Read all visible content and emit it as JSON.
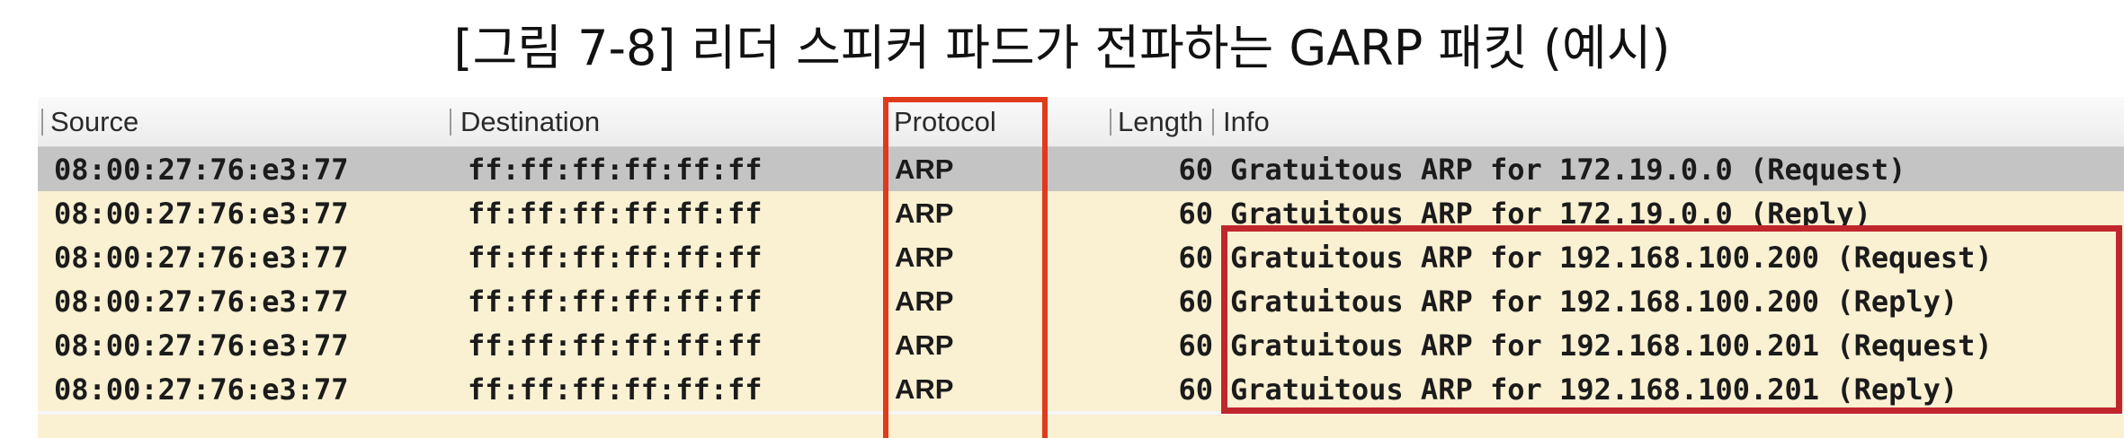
{
  "caption": "[그림 7-8] 리더 스피커 파드가 전파하는 GARP 패킷 (예시)",
  "columns": {
    "source": "Source",
    "destination": "Destination",
    "protocol": "Protocol",
    "length": "Length",
    "info": "Info"
  },
  "rows": [
    {
      "source": "08:00:27:76:e3:77",
      "destination": "ff:ff:ff:ff:ff:ff",
      "protocol": "ARP",
      "length": "60",
      "info": "Gratuitous ARP for 172.19.0.0 (Request)"
    },
    {
      "source": "08:00:27:76:e3:77",
      "destination": "ff:ff:ff:ff:ff:ff",
      "protocol": "ARP",
      "length": "60",
      "info": "Gratuitous ARP for 172.19.0.0 (Reply)"
    },
    {
      "source": "08:00:27:76:e3:77",
      "destination": "ff:ff:ff:ff:ff:ff",
      "protocol": "ARP",
      "length": "60",
      "info": "Gratuitous ARP for 192.168.100.200 (Request)"
    },
    {
      "source": "08:00:27:76:e3:77",
      "destination": "ff:ff:ff:ff:ff:ff",
      "protocol": "ARP",
      "length": "60",
      "info": "Gratuitous ARP for 192.168.100.200 (Reply)"
    },
    {
      "source": "08:00:27:76:e3:77",
      "destination": "ff:ff:ff:ff:ff:ff",
      "protocol": "ARP",
      "length": "60",
      "info": "Gratuitous ARP for 192.168.100.201 (Request)"
    },
    {
      "source": "08:00:27:76:e3:77",
      "destination": "ff:ff:ff:ff:ff:ff",
      "protocol": "ARP",
      "length": "60",
      "info": "Gratuitous ARP for 192.168.100.201 (Reply)"
    }
  ],
  "colors": {
    "selected_row": "#c4c4c4",
    "arp_row": "#faf0d2",
    "protocol_highlight": "#e03a1c",
    "info_highlight": "#c0272d"
  }
}
